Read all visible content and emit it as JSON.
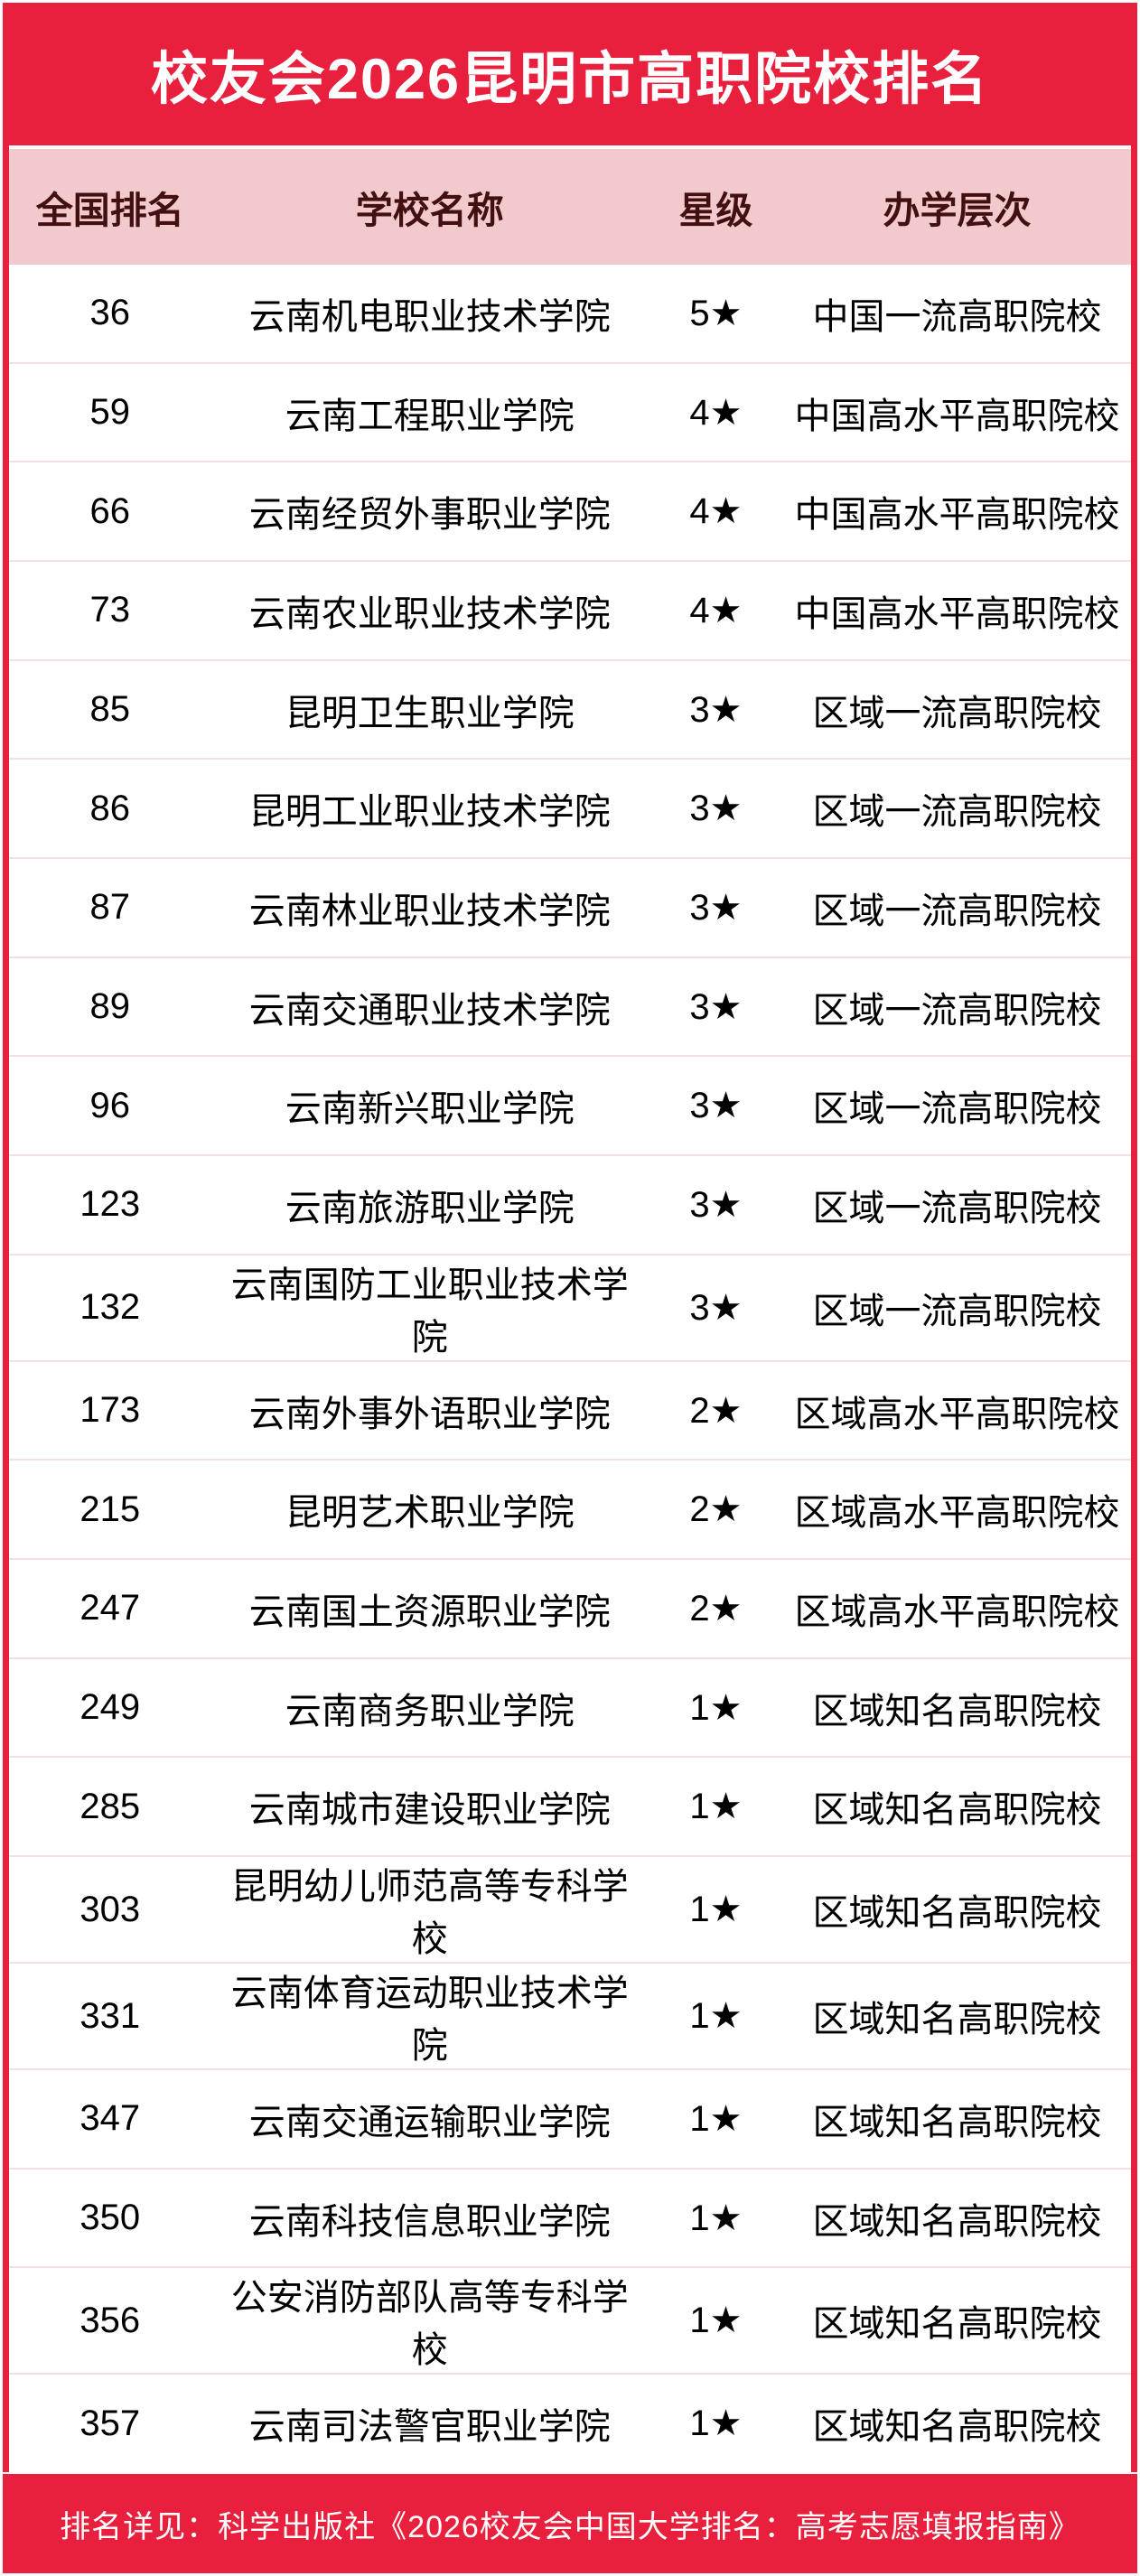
{
  "header": {
    "title": "校友会2026昆明市高职院校排名"
  },
  "table": {
    "columns": {
      "rank": "全国排名",
      "name": "学校名称",
      "star": "星级",
      "level": "办学层次"
    },
    "rows": [
      {
        "rank": "36",
        "name": "云南机电职业技术学院",
        "star": "5★",
        "level": "中国一流高职院校"
      },
      {
        "rank": "59",
        "name": "云南工程职业学院",
        "star": "4★",
        "level": "中国高水平高职院校"
      },
      {
        "rank": "66",
        "name": "云南经贸外事职业学院",
        "star": "4★",
        "level": "中国高水平高职院校"
      },
      {
        "rank": "73",
        "name": "云南农业职业技术学院",
        "star": "4★",
        "level": "中国高水平高职院校"
      },
      {
        "rank": "85",
        "name": "昆明卫生职业学院",
        "star": "3★",
        "level": "区域一流高职院校"
      },
      {
        "rank": "86",
        "name": "昆明工业职业技术学院",
        "star": "3★",
        "level": "区域一流高职院校"
      },
      {
        "rank": "87",
        "name": "云南林业职业技术学院",
        "star": "3★",
        "level": "区域一流高职院校"
      },
      {
        "rank": "89",
        "name": "云南交通职业技术学院",
        "star": "3★",
        "level": "区域一流高职院校"
      },
      {
        "rank": "96",
        "name": "云南新兴职业学院",
        "star": "3★",
        "level": "区域一流高职院校"
      },
      {
        "rank": "123",
        "name": "云南旅游职业学院",
        "star": "3★",
        "level": "区域一流高职院校"
      },
      {
        "rank": "132",
        "name": "云南国防工业职业技术学院",
        "star": "3★",
        "level": "区域一流高职院校"
      },
      {
        "rank": "173",
        "name": "云南外事外语职业学院",
        "star": "2★",
        "level": "区域高水平高职院校"
      },
      {
        "rank": "215",
        "name": "昆明艺术职业学院",
        "star": "2★",
        "level": "区域高水平高职院校"
      },
      {
        "rank": "247",
        "name": "云南国土资源职业学院",
        "star": "2★",
        "level": "区域高水平高职院校"
      },
      {
        "rank": "249",
        "name": "云南商务职业学院",
        "star": "1★",
        "level": "区域知名高职院校"
      },
      {
        "rank": "285",
        "name": "云南城市建设职业学院",
        "star": "1★",
        "level": "区域知名高职院校"
      },
      {
        "rank": "303",
        "name": "昆明幼儿师范高等专科学校",
        "star": "1★",
        "level": "区域知名高职院校"
      },
      {
        "rank": "331",
        "name": "云南体育运动职业技术学院",
        "star": "1★",
        "level": "区域知名高职院校"
      },
      {
        "rank": "347",
        "name": "云南交通运输职业学院",
        "star": "1★",
        "level": "区域知名高职院校"
      },
      {
        "rank": "350",
        "name": "云南科技信息职业学院",
        "star": "1★",
        "level": "区域知名高职院校"
      },
      {
        "rank": "356",
        "name": "公安消防部队高等专科学校",
        "star": "1★",
        "level": "区域知名高职院校"
      },
      {
        "rank": "357",
        "name": "云南司法警官职业学院",
        "star": "1★",
        "level": "区域知名高职院校"
      }
    ]
  },
  "footer": {
    "note": "排名详见：科学出版社《2026校友会中国大学排名：高考志愿填报指南》"
  },
  "colors": {
    "accent_red": "#E8203D",
    "header_bg": "#F2CACD",
    "header_text": "#431011",
    "separator": "#F6DEDE",
    "row_text": "#000000",
    "banner_text": "#FFFFFF"
  }
}
